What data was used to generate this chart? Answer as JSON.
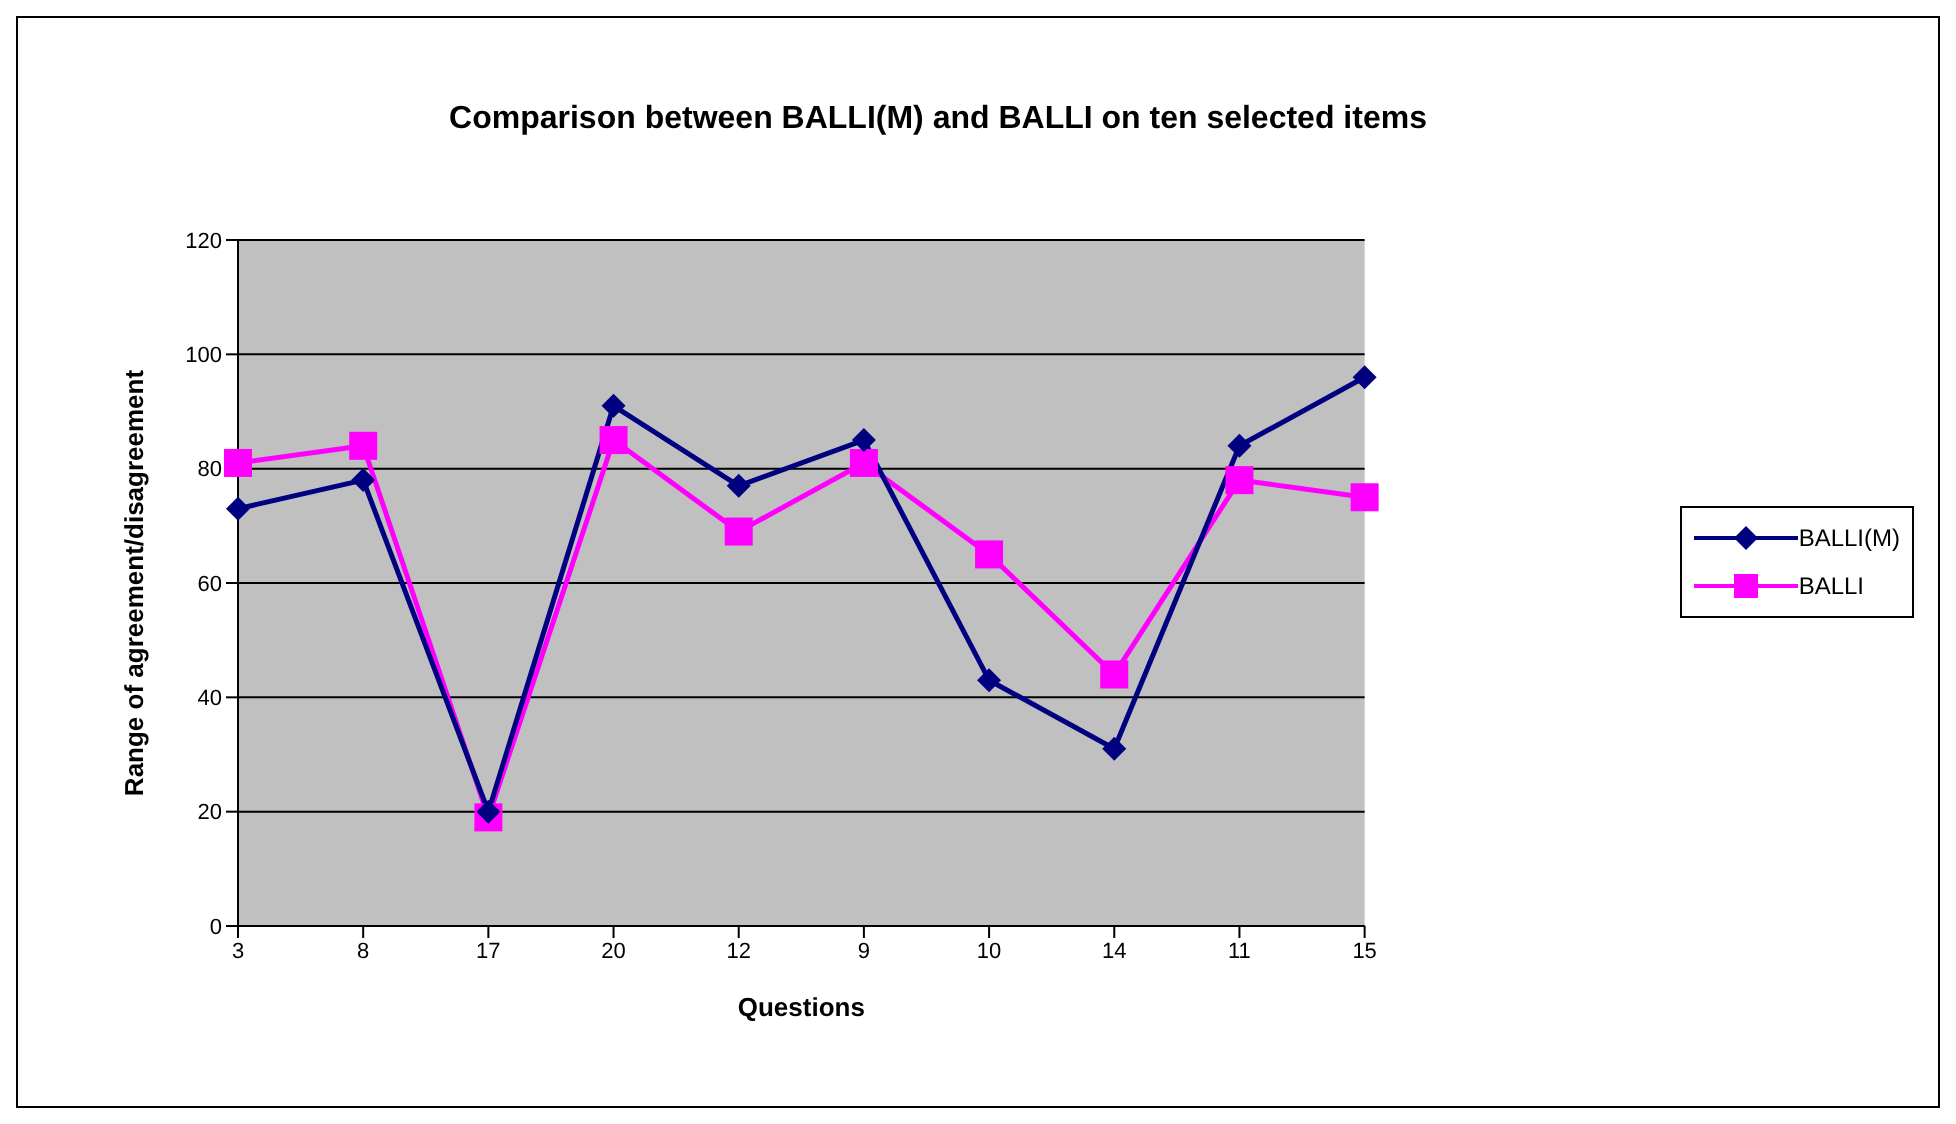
{
  "chart_data": {
    "type": "line",
    "title": "Comparison between BALLI(M) and BALLI on ten selected items",
    "xlabel": "Questions",
    "ylabel": "Range of agreement/disagreement",
    "categories": [
      "3",
      "8",
      "17",
      "20",
      "12",
      "9",
      "10",
      "14",
      "11",
      "15"
    ],
    "series": [
      {
        "name": "BALLI(M)",
        "color": "#000080",
        "marker": "diamond",
        "values": [
          73,
          78,
          20,
          91,
          77,
          85,
          43,
          31,
          84,
          96
        ]
      },
      {
        "name": "BALLI",
        "color": "#ff00ff",
        "marker": "square",
        "values": [
          81,
          84,
          19,
          85,
          69,
          81,
          65,
          44,
          78,
          75
        ]
      }
    ],
    "ylim": [
      0,
      120
    ],
    "yticks": [
      0,
      20,
      40,
      60,
      80,
      100,
      120
    ],
    "grid": "y",
    "legend": "right",
    "line_style": "solid"
  }
}
